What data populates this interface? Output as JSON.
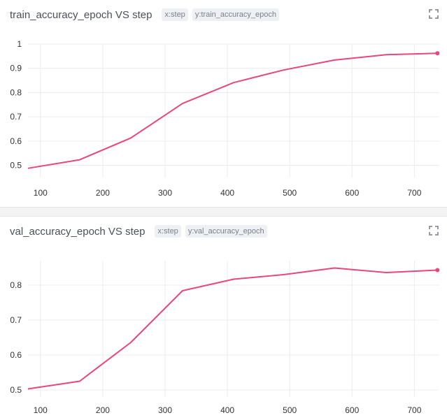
{
  "colors": {
    "line": "#e8467c",
    "grid": "#ececec"
  },
  "panels": [
    {
      "title": "train_accuracy_epoch VS step",
      "x_badge": "x:step",
      "y_badge": "y:train_accuracy_epoch",
      "expand_icon": "expand-icon"
    },
    {
      "title": "val_accuracy_epoch VS step",
      "x_badge": "x:step",
      "y_badge": "y:val_accuracy_epoch",
      "expand_icon": "expand-icon"
    }
  ],
  "chart_data": [
    {
      "type": "line",
      "title": "train_accuracy_epoch VS step",
      "x": [
        80,
        163,
        245,
        328,
        410,
        490,
        572,
        655,
        737
      ],
      "series": [
        {
          "values": [
            0.488,
            0.523,
            0.613,
            0.755,
            0.841,
            0.893,
            0.934,
            0.956,
            0.962
          ]
        }
      ],
      "xlim": [
        80,
        740
      ],
      "ylim": [
        0.45,
        1.0
      ],
      "xticks": [
        100,
        200,
        300,
        400,
        500,
        600,
        700
      ],
      "yticks": [
        0.5,
        0.6,
        0.7,
        0.8,
        0.9,
        1
      ],
      "ytick_labels": [
        "0.5",
        "0.6",
        "0.7",
        "0.8",
        "0.9",
        "1"
      ],
      "grid": true
    },
    {
      "type": "line",
      "title": "val_accuracy_epoch VS step",
      "x": [
        80,
        163,
        245,
        328,
        410,
        490,
        572,
        655,
        737
      ],
      "series": [
        {
          "values": [
            0.503,
            0.525,
            0.636,
            0.784,
            0.817,
            0.83,
            0.849,
            0.836,
            0.843
          ]
        }
      ],
      "xlim": [
        80,
        740
      ],
      "ylim": [
        0.48,
        0.87
      ],
      "xticks": [
        100,
        200,
        300,
        400,
        500,
        600,
        700
      ],
      "yticks": [
        0.5,
        0.6,
        0.7,
        0.8
      ],
      "ytick_labels": [
        "0.5",
        "0.6",
        "0.7",
        "0.8"
      ],
      "grid": true
    }
  ]
}
